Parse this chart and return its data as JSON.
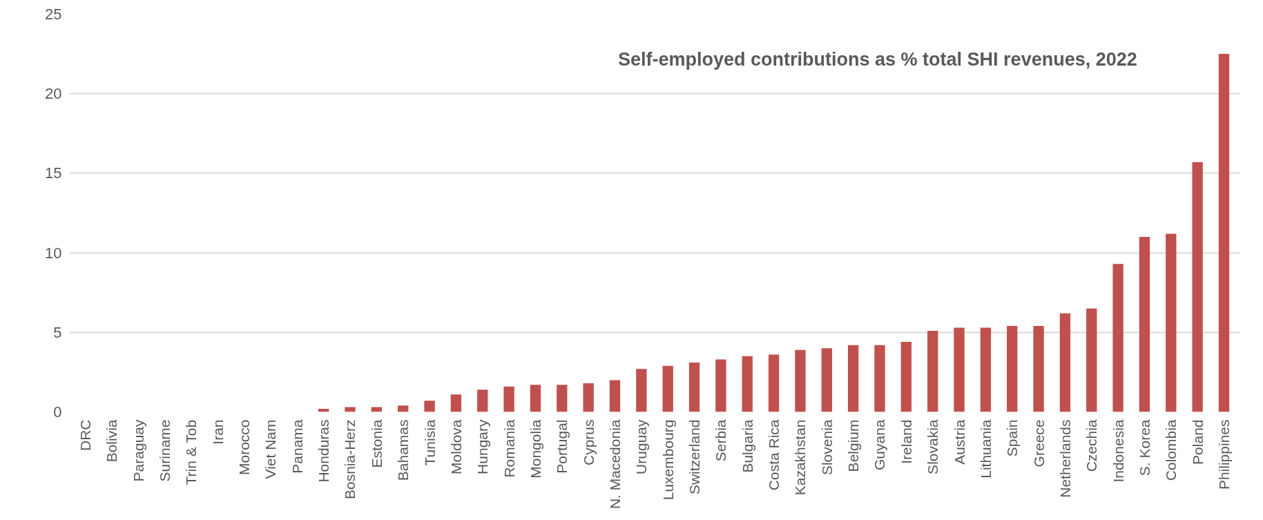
{
  "chart_data": {
    "type": "bar",
    "title": "Self-employed contributions as % total SHI revenues, 2022",
    "categories": [
      "DRC",
      "Bolivia",
      "Paraguay",
      "Suriname",
      "Trin & Tob",
      "Iran",
      "Morocco",
      "Viet Nam",
      "Panama",
      "Honduras",
      "Bosnia-Herz",
      "Estonia",
      "Bahamas",
      "Tunisia",
      "Moldova",
      "Hungary",
      "Romania",
      "Mongolia",
      "Portugal",
      "Cyprus",
      "N. Macedonia",
      "Uruguay",
      "Luxembourg",
      "Switzerland",
      "Serbia",
      "Bulgaria",
      "Costa Rica",
      "Kazakhstan",
      "Slovenia",
      "Belgium",
      "Guyana",
      "Ireland",
      "Slovakia",
      "Austria",
      "Lithuania",
      "Spain",
      "Greece",
      "Netherlands",
      "Czechia",
      "Indonesia",
      "S. Korea",
      "Colombia",
      "Poland",
      "Philippines"
    ],
    "values": [
      0,
      0,
      0,
      0,
      0,
      0,
      0,
      0,
      0,
      0.2,
      0.3,
      0.3,
      0.4,
      0.7,
      1.1,
      1.4,
      1.6,
      1.7,
      1.7,
      1.8,
      2.0,
      2.7,
      2.9,
      3.1,
      3.3,
      3.5,
      3.6,
      3.9,
      4.0,
      4.2,
      4.2,
      4.4,
      5.1,
      5.3,
      5.3,
      5.4,
      5.4,
      6.2,
      6.5,
      9.3,
      11.0,
      11.2,
      15.7,
      22.5
    ],
    "color": "#c0504d",
    "ylim": [
      0,
      25
    ],
    "yticks": [
      0,
      5,
      10,
      15,
      20,
      25
    ],
    "grid": "y"
  }
}
